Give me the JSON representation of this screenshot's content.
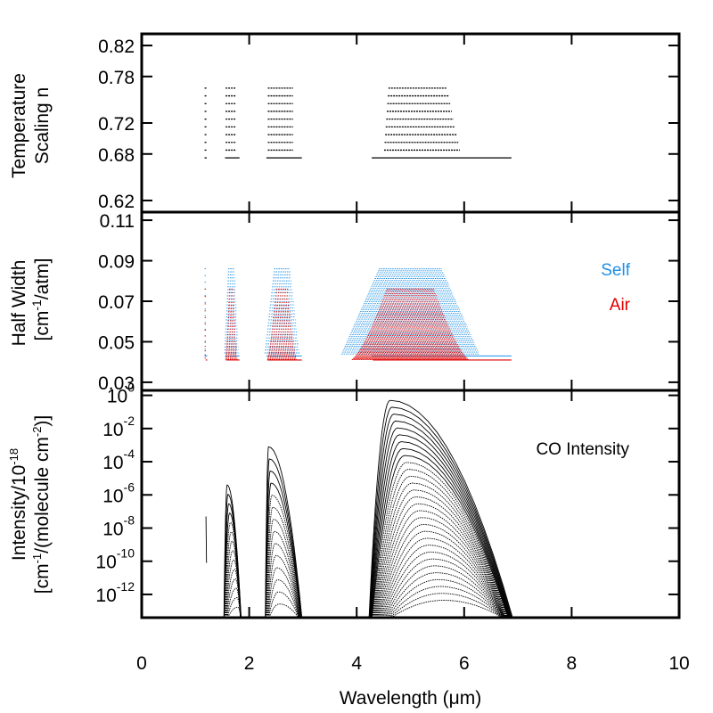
{
  "chart_data": [
    {
      "type": "line",
      "panel": "temperature-scaling",
      "ylabel_lines": [
        "Temperature",
        "Scaling n"
      ],
      "yticks": [
        "0.82",
        "0.78",
        "0.72",
        "0.68",
        "0.62"
      ],
      "ytick_values": [
        0.82,
        0.78,
        0.72,
        0.68,
        0.62
      ],
      "ylim": [
        0.605,
        0.835
      ],
      "n_levels": [
        0.675,
        0.685,
        0.695,
        0.705,
        0.715,
        0.725,
        0.735,
        0.745,
        0.755,
        0.765
      ],
      "bands": [
        {
          "range": [
            1.17,
            1.22
          ],
          "top": 0.765
        },
        {
          "range": [
            1.55,
            1.82
          ],
          "top": 0.765
        },
        {
          "range": [
            2.32,
            2.98
          ],
          "top": 0.765
        },
        {
          "range": [
            4.28,
            6.88
          ],
          "top": 0.765
        }
      ]
    },
    {
      "type": "line",
      "panel": "half-width",
      "ylabel_lines": [
        "Half Width",
        "[cm",
        "-1",
        "/atm]"
      ],
      "yticks": [
        "0.11",
        "0.09",
        "0.07",
        "0.05",
        "0.03"
      ],
      "ytick_values": [
        0.11,
        0.09,
        0.07,
        0.05,
        0.03
      ],
      "ylim": [
        0.026,
        0.114
      ],
      "series": [
        {
          "name": "Self",
          "color": "#1e90e6",
          "range": [
            0.043,
            0.086
          ]
        },
        {
          "name": "Air",
          "color": "#e00000",
          "range": [
            0.041,
            0.076
          ]
        }
      ],
      "bands": [
        {
          "range": [
            1.17,
            1.22
          ]
        },
        {
          "range": [
            1.55,
            1.82
          ]
        },
        {
          "range": [
            2.32,
            2.98
          ]
        },
        {
          "range": [
            4.28,
            6.88
          ]
        }
      ]
    },
    {
      "type": "line",
      "panel": "intensity",
      "ylabel_lines": [
        "Intensity/10",
        "-18",
        "[cm",
        "-1",
        "/(molecule cm",
        "-2",
        ")]"
      ],
      "yscale": "log",
      "yticks": [
        {
          "base": "10",
          "exp": "0",
          "value": 0
        },
        {
          "base": "10",
          "exp": "-2",
          "value": -2
        },
        {
          "base": "10",
          "exp": "-4",
          "value": -4
        },
        {
          "base": "10",
          "exp": "-6",
          "value": -6
        },
        {
          "base": "10",
          "exp": "-8",
          "value": -8
        },
        {
          "base": "10",
          "exp": "-10",
          "value": -10
        },
        {
          "base": "10",
          "exp": "-12",
          "value": -12
        }
      ],
      "ylim_log10": [
        -13.4,
        0.3
      ],
      "label": "CO Intensity",
      "bands": [
        {
          "range": [
            1.18,
            1.21
          ],
          "peak_center": 1.195,
          "peak_log10": -7.3
        },
        {
          "range": [
            1.55,
            1.85
          ],
          "peak_center": 1.59,
          "peak_log10": -5.4
        },
        {
          "range": [
            2.32,
            2.98
          ],
          "peak_center": 2.36,
          "peak_log10": -3.1
        },
        {
          "range": [
            4.25,
            6.9
          ],
          "peak_center": 4.62,
          "peak_log10": -0.3
        }
      ],
      "xlabel": "Wavelength (μm)",
      "xticks": [
        "0",
        "2",
        "4",
        "6",
        "8",
        "10"
      ],
      "xtick_values": [
        0,
        2,
        4,
        6,
        8,
        10
      ],
      "xlim": [
        0,
        10
      ]
    }
  ]
}
